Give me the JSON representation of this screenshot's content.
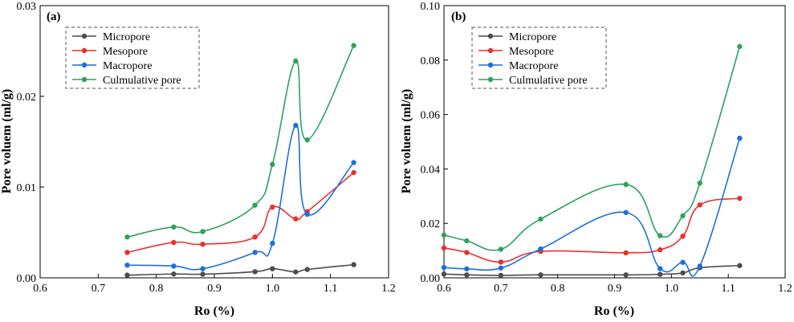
{
  "chart_data": [
    {
      "type": "line",
      "panel": "(a)",
      "xlabel": "Ro (%)",
      "ylabel": "Pore voluem (ml/g)",
      "xlim": [
        0.6,
        1.2
      ],
      "ylim": [
        0,
        0.03
      ],
      "xticks": [
        0.6,
        0.7,
        0.8,
        0.9,
        1.0,
        1.1,
        1.2
      ],
      "xtick_labels": [
        "0.6",
        "0.7",
        "0.8",
        "0.9",
        "1.0",
        "1.1",
        "1.2"
      ],
      "yticks": [
        0,
        0.01,
        0.02,
        0.03
      ],
      "ytick_labels": [
        "0.00",
        "0.01",
        "0.02",
        "0.03"
      ],
      "legend": [
        "Micropore",
        "Mesopore",
        "Macropore",
        "Culmulative pore"
      ],
      "x": [
        0.75,
        0.83,
        0.88,
        0.97,
        1.0,
        1.04,
        1.06,
        1.14
      ],
      "series": [
        {
          "name": "Micropore",
          "color": "#4d4d4d",
          "values": [
            0.0003,
            0.00042,
            0.0004,
            0.00068,
            0.001,
            0.00065,
            0.00092,
            0.00145
          ]
        },
        {
          "name": "Mesopore",
          "color": "#e8312b",
          "values": [
            0.0028,
            0.0039,
            0.0037,
            0.0045,
            0.0078,
            0.0065,
            0.0073,
            0.0116
          ]
        },
        {
          "name": "Macropore",
          "color": "#1e6fd9",
          "values": [
            0.0014,
            0.0013,
            0.001,
            0.0028,
            0.0038,
            0.0168,
            0.007,
            0.0127
          ]
        },
        {
          "name": "Culmulative pore",
          "color": "#2ca25f",
          "values": [
            0.0045,
            0.0056,
            0.0051,
            0.008,
            0.0125,
            0.0239,
            0.0152,
            0.0256
          ]
        }
      ]
    },
    {
      "type": "line",
      "panel": "(b)",
      "xlabel": "Ro (%)",
      "ylabel": "Pore voluem (ml/g)",
      "xlim": [
        0.6,
        1.2
      ],
      "ylim": [
        0,
        0.1
      ],
      "xticks": [
        0.6,
        0.7,
        0.8,
        0.9,
        1.0,
        1.1,
        1.2
      ],
      "xtick_labels": [
        "0.6",
        "0.7",
        "0.8",
        "0.9",
        "1.0",
        "1.1",
        "1.2"
      ],
      "yticks": [
        0,
        0.02,
        0.04,
        0.06,
        0.08,
        0.1
      ],
      "ytick_labels": [
        "0.00",
        "0.02",
        "0.04",
        "0.06",
        "0.08",
        "0.10"
      ],
      "legend": [
        "Micropore",
        "Mesopore",
        "Macropore",
        "Culmulative pore"
      ],
      "x": [
        0.6,
        0.64,
        0.7,
        0.77,
        0.92,
        0.98,
        1.02,
        1.05,
        1.12
      ],
      "series": [
        {
          "name": "Micropore",
          "color": "#4d4d4d",
          "values": [
            0.0014,
            0.0011,
            0.0009,
            0.0011,
            0.0011,
            0.0013,
            0.0018,
            0.0037,
            0.0045
          ]
        },
        {
          "name": "Mesopore",
          "color": "#e8312b",
          "values": [
            0.011,
            0.0093,
            0.0058,
            0.0097,
            0.0092,
            0.0103,
            0.0153,
            0.0268,
            0.0292
          ]
        },
        {
          "name": "Macropore",
          "color": "#1e6fd9",
          "values": [
            0.0038,
            0.0033,
            0.0036,
            0.0106,
            0.024,
            0.0034,
            0.0057,
            0.0043,
            0.0513
          ]
        },
        {
          "name": "Culmulative pore",
          "color": "#2ca25f",
          "values": [
            0.0157,
            0.0136,
            0.0105,
            0.0216,
            0.0343,
            0.0155,
            0.0228,
            0.0348,
            0.085
          ]
        }
      ]
    }
  ]
}
